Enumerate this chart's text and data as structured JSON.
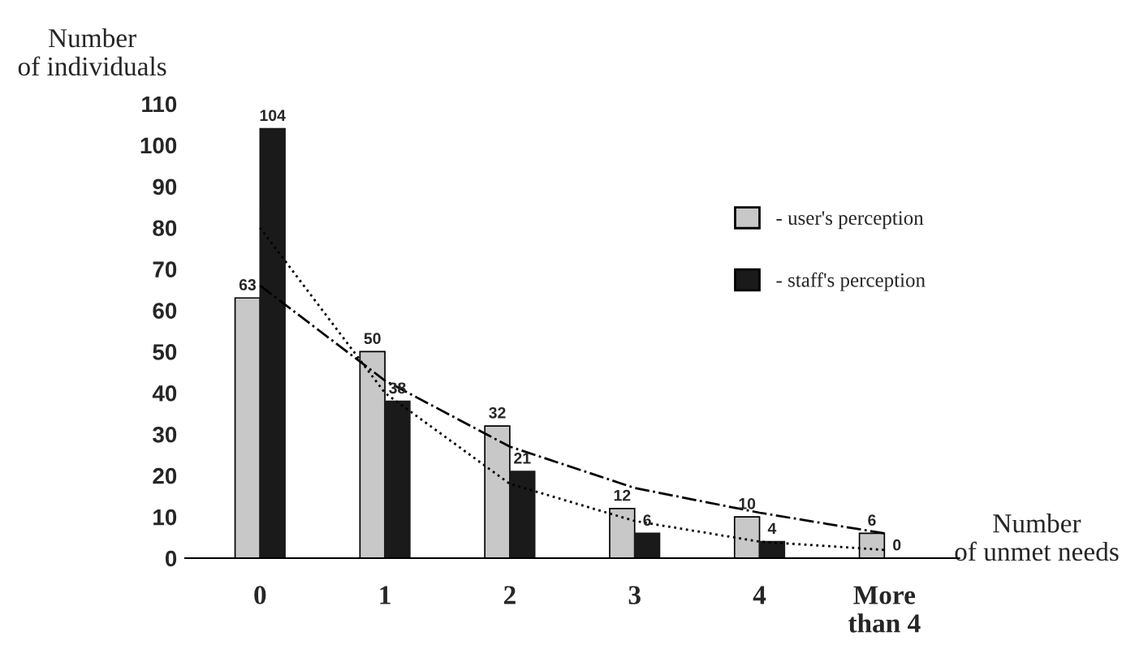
{
  "chart_data": {
    "type": "bar",
    "ylabel": "Number\nof individuals",
    "xlabel": "Number\nof unmet needs",
    "categories": [
      "0",
      "1",
      "2",
      "3",
      "4",
      "More\nthan 4"
    ],
    "series": [
      {
        "name": "- user's perception",
        "color": "#c8c8c8",
        "values": [
          63,
          50,
          32,
          12,
          10,
          6
        ],
        "value_labels": [
          "63",
          "50",
          "32",
          "12",
          "10",
          "6"
        ]
      },
      {
        "name": "- staff's perception",
        "color": "#1a1a1a",
        "values": [
          104,
          38,
          21,
          6,
          4,
          0
        ],
        "value_labels": [
          "104",
          "38",
          "21",
          "6",
          "4",
          "0"
        ]
      },
      {
        "type": "line",
        "color": "#000000",
        "line_style": "dashdot",
        "values": [
          66,
          43,
          27,
          17,
          11,
          6
        ]
      },
      {
        "type": "line",
        "color": "#000000",
        "line_style": "dotted",
        "values": [
          80,
          40,
          18,
          9,
          4,
          2
        ]
      }
    ],
    "ylim": [
      0,
      110
    ],
    "yticks": [
      0,
      10,
      20,
      30,
      40,
      50,
      60,
      70,
      80,
      90,
      100,
      110
    ],
    "grid": false,
    "legend": "right"
  }
}
